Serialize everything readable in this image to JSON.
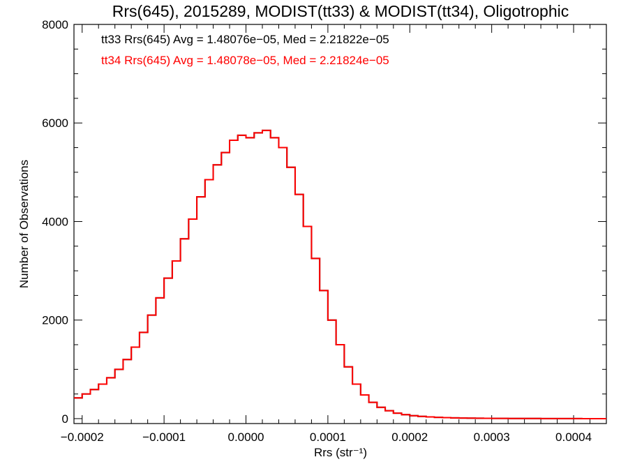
{
  "chart_data": {
    "type": "line",
    "step": true,
    "title": "Rrs(645), 2015289, MODIST(tt33) & MODIST(tt34), Oligotrophic",
    "xlabel": "Rrs (str⁻¹)",
    "ylabel": "Number of Observations",
    "xlim": [
      -0.00021,
      0.00044
    ],
    "ylim": [
      -100,
      8000
    ],
    "x_tick_labels": [
      "−0.0002",
      "−0.0001",
      "0.0000",
      "0.0001",
      "0.0002",
      "0.0003",
      "0.0004"
    ],
    "x_ticks": [
      -0.0002,
      -0.0001,
      0.0,
      0.0001,
      0.0002,
      0.0003,
      0.0004
    ],
    "y_tick_labels": [
      "0",
      "2000",
      "4000",
      "6000",
      "8000"
    ],
    "y_ticks": [
      0,
      2000,
      4000,
      6000,
      8000
    ],
    "grid": false,
    "annotations": [
      {
        "text": "tt33 Rrs(645) Avg = 1.48076e−05, Med = 2.21822e−05",
        "color": "#000000"
      },
      {
        "text": "tt34 Rrs(645) Avg = 1.48078e−05, Med = 2.21824e−05",
        "color": "#ff0000"
      }
    ],
    "series": [
      {
        "color": "#000000",
        "x": [
          -0.00021,
          -0.0002,
          -0.00019,
          -0.00018,
          -0.00017,
          -0.00016,
          -0.00015,
          -0.00014,
          -0.00013,
          -0.00012,
          -0.00011,
          -0.0001,
          -9e-05,
          -8e-05,
          -7e-05,
          -6e-05,
          -5e-05,
          -4e-05,
          -3e-05,
          -2e-05,
          -1e-05,
          0.0,
          1e-05,
          2e-05,
          3e-05,
          4e-05,
          5e-05,
          6e-05,
          7e-05,
          8e-05,
          9e-05,
          0.0001,
          0.00011,
          0.00012,
          0.00013,
          0.00014,
          0.00015,
          0.00016,
          0.00017,
          0.00018,
          0.00019,
          0.0002,
          0.00021,
          0.00022,
          0.00023,
          0.00024,
          0.00025,
          0.00026,
          0.00027,
          0.00028,
          0.00029,
          0.0003,
          0.00031,
          0.00032,
          0.00033,
          0.00034,
          0.00035,
          0.00036,
          0.00037,
          0.00038,
          0.00039,
          0.0004,
          0.00041,
          0.00042,
          0.00043,
          0.00044
        ],
        "values": [
          420,
          500,
          590,
          700,
          830,
          1000,
          1200,
          1450,
          1750,
          2100,
          2450,
          2850,
          3200,
          3650,
          4050,
          4500,
          4850,
          5150,
          5400,
          5650,
          5750,
          5700,
          5800,
          5850,
          5700,
          5500,
          5100,
          4550,
          3900,
          3250,
          2600,
          2000,
          1500,
          1050,
          700,
          480,
          330,
          230,
          160,
          110,
          80,
          60,
          45,
          35,
          25,
          20,
          15,
          12,
          10,
          8,
          6,
          5,
          4,
          3,
          3,
          2,
          2,
          1,
          1,
          1,
          1,
          1,
          0,
          0,
          0,
          0
        ]
      },
      {
        "color": "#ff0000",
        "x": [
          -0.00021,
          -0.0002,
          -0.00019,
          -0.00018,
          -0.00017,
          -0.00016,
          -0.00015,
          -0.00014,
          -0.00013,
          -0.00012,
          -0.00011,
          -0.0001,
          -9e-05,
          -8e-05,
          -7e-05,
          -6e-05,
          -5e-05,
          -4e-05,
          -3e-05,
          -2e-05,
          -1e-05,
          0.0,
          1e-05,
          2e-05,
          3e-05,
          4e-05,
          5e-05,
          6e-05,
          7e-05,
          8e-05,
          9e-05,
          0.0001,
          0.00011,
          0.00012,
          0.00013,
          0.00014,
          0.00015,
          0.00016,
          0.00017,
          0.00018,
          0.00019,
          0.0002,
          0.00021,
          0.00022,
          0.00023,
          0.00024,
          0.00025,
          0.00026,
          0.00027,
          0.00028,
          0.00029,
          0.0003,
          0.00031,
          0.00032,
          0.00033,
          0.00034,
          0.00035,
          0.00036,
          0.00037,
          0.00038,
          0.00039,
          0.0004,
          0.00041,
          0.00042,
          0.00043,
          0.00044
        ],
        "values": [
          420,
          500,
          590,
          700,
          830,
          1000,
          1200,
          1450,
          1750,
          2100,
          2450,
          2850,
          3200,
          3650,
          4050,
          4500,
          4850,
          5150,
          5400,
          5650,
          5750,
          5700,
          5800,
          5850,
          5700,
          5500,
          5100,
          4550,
          3900,
          3250,
          2600,
          2000,
          1500,
          1050,
          700,
          480,
          330,
          230,
          160,
          110,
          80,
          60,
          45,
          35,
          25,
          20,
          15,
          12,
          10,
          8,
          6,
          5,
          4,
          3,
          3,
          2,
          2,
          1,
          1,
          1,
          1,
          1,
          0,
          0,
          0,
          0
        ]
      }
    ]
  }
}
